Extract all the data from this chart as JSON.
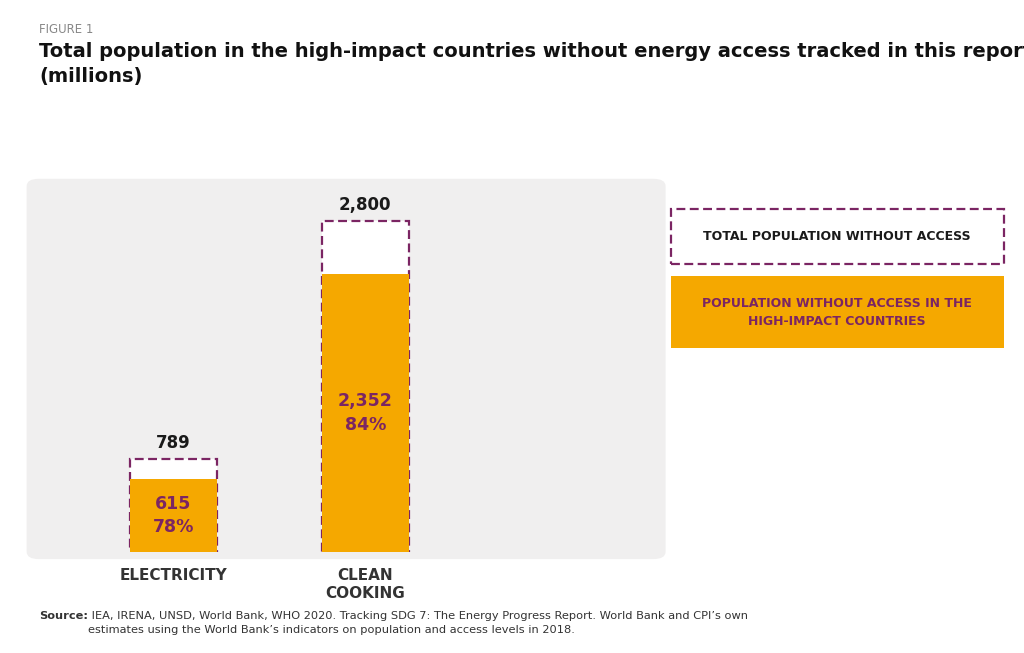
{
  "figure_label": "FIGURE 1",
  "title": "Total population in the high-impact countries without energy access tracked in this report\n(millions)",
  "categories": [
    "ELECTRICITY",
    "CLEAN\nCOOKING"
  ],
  "total_values": [
    789,
    2800
  ],
  "highlight_values": [
    615,
    2352
  ],
  "highlight_pcts": [
    "78%",
    "84%"
  ],
  "gold_color": "#F5A800",
  "dashed_border_color": "#7B2563",
  "bar_width": 0.45,
  "source_bold": "Source:",
  "source_rest": " IEA, IRENA, UNSD, World Bank, WHO 2020. Tracking SDG 7: The Energy Progress Report. World Bank and CPI’s own\nestimates using the World Bank’s indicators on population and access levels in 2018.",
  "legend_label_1": "TOTAL POPULATION WITHOUT ACCESS",
  "legend_label_2": "POPULATION WITHOUT ACCESS IN THE\nHIGH-IMPACT COUNTRIES",
  "ylim": [
    0,
    3100
  ],
  "chart_bg": "#F0EFEF"
}
